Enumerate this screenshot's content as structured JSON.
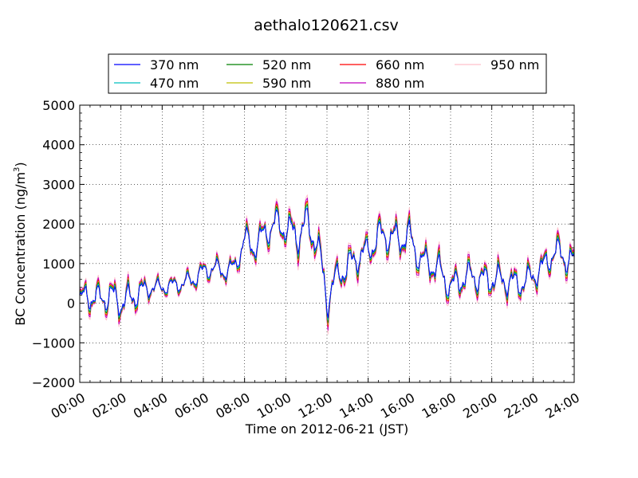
{
  "chart_data": {
    "type": "line",
    "title": "aethalo120621.csv",
    "xlabel": "Time on 2012-06-21 (JST)",
    "ylabel_main": "BC Concentration (ng/m",
    "ylabel_sup": "3",
    "ylabel_close": ")",
    "xlim": [
      "00:00",
      "24:00"
    ],
    "ylim": [
      -2000,
      5000
    ],
    "x_ticks": [
      "00:00",
      "02:00",
      "04:00",
      "06:00",
      "08:00",
      "10:00",
      "12:00",
      "14:00",
      "16:00",
      "18:00",
      "20:00",
      "22:00",
      "24:00"
    ],
    "y_ticks": [
      "5000",
      "4000",
      "3000",
      "2000",
      "1000",
      "0",
      "−1000",
      "−2000"
    ],
    "y_tick_values": [
      5000,
      4000,
      3000,
      2000,
      1000,
      0,
      -1000,
      -2000
    ],
    "grid": true,
    "legend_position": "top",
    "anchors": {
      "hours": [
        0,
        0.5,
        1,
        1.5,
        2,
        2.5,
        3,
        3.5,
        4,
        4.5,
        5,
        5.5,
        6,
        6.5,
        7,
        7.5,
        8,
        8.5,
        9,
        9.5,
        10,
        10.5,
        11,
        11.5,
        12,
        12.5,
        13,
        13.5,
        14,
        14.5,
        15,
        15.5,
        16,
        16.5,
        17,
        17.5,
        18,
        18.5,
        19,
        19.5,
        20,
        20.5,
        21,
        21.5,
        22,
        22.5,
        23,
        23.5,
        24
      ],
      "base": [
        100,
        200,
        100,
        200,
        0,
        150,
        300,
        400,
        400,
        450,
        500,
        600,
        800,
        900,
        800,
        900,
        1600,
        1400,
        1800,
        2000,
        1900,
        1700,
        2000,
        1600,
        100,
        700,
        900,
        1200,
        1300,
        1700,
        1700,
        1600,
        1700,
        1100,
        1000,
        800,
        400,
        600,
        700,
        600,
        600,
        600,
        500,
        500,
        700,
        900,
        1300,
        1200,
        1000
      ],
      "amp": [
        350,
        500,
        400,
        500,
        450,
        450,
        400,
        250,
        250,
        250,
        250,
        300,
        300,
        300,
        300,
        300,
        450,
        400,
        450,
        500,
        500,
        600,
        600,
        550,
        600,
        400,
        500,
        500,
        450,
        500,
        500,
        500,
        500,
        450,
        450,
        500,
        450,
        450,
        450,
        450,
        450,
        450,
        450,
        400,
        400,
        450,
        450,
        500,
        500
      ]
    },
    "series": [
      {
        "name": "370 nm",
        "color": "#0000ff",
        "scale": 0.7
      },
      {
        "name": "470 nm",
        "color": "#00bfbf",
        "scale": 0.78
      },
      {
        "name": "520 nm",
        "color": "#008000",
        "scale": 0.86
      },
      {
        "name": "590 nm",
        "color": "#bfbf00",
        "scale": 0.93
      },
      {
        "name": "660 nm",
        "color": "#ff0000",
        "scale": 1.0
      },
      {
        "name": "880 nm",
        "color": "#bf00bf",
        "scale": 1.12
      },
      {
        "name": "950 nm",
        "color": "#ffc0cb",
        "scale": 1.25
      }
    ]
  }
}
